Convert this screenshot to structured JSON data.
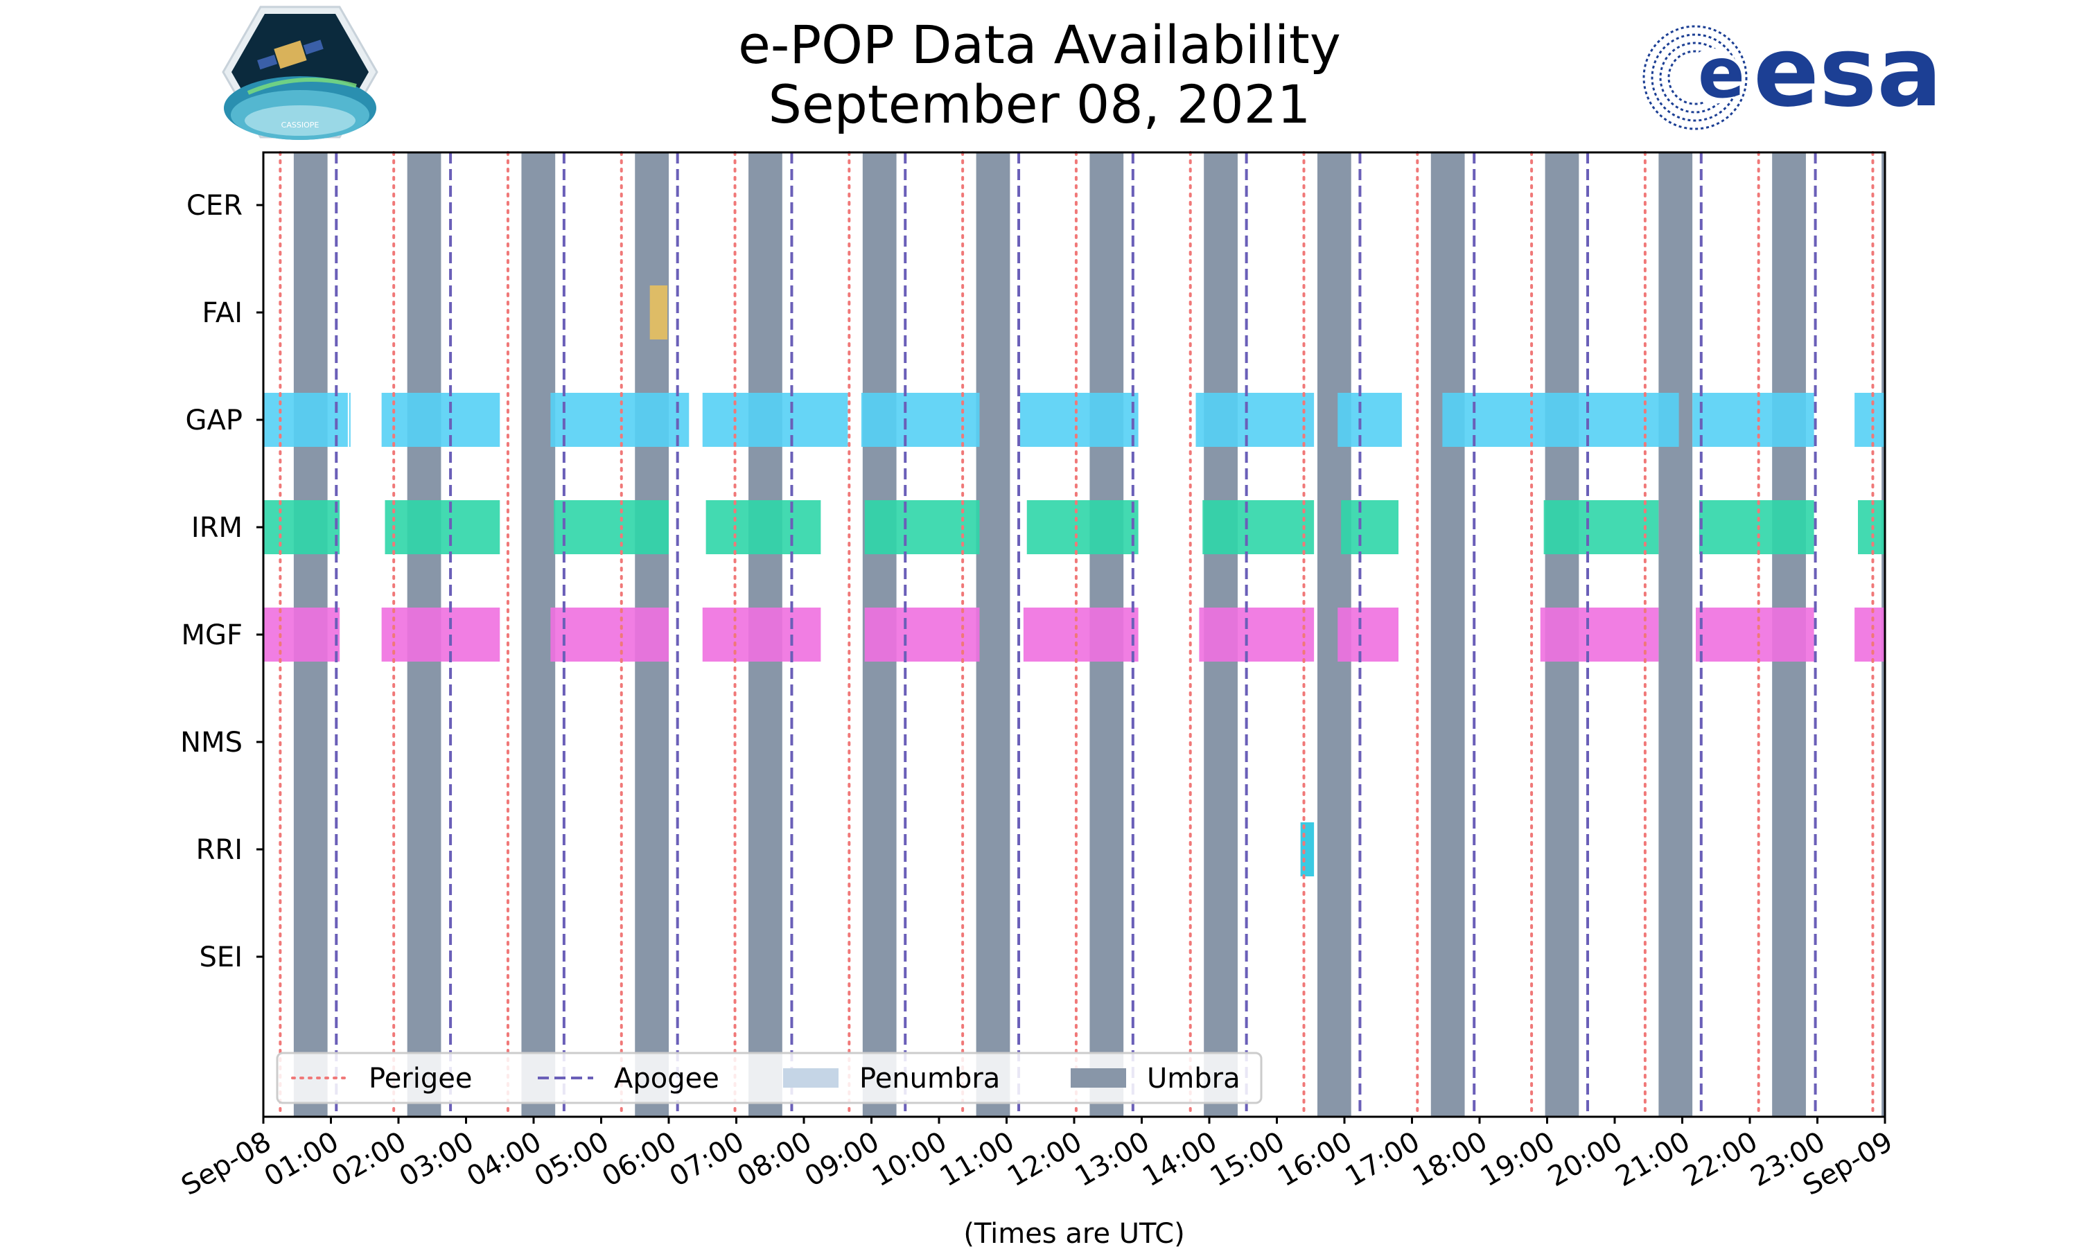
{
  "header": {
    "title_line1": "e-POP Data Availability",
    "title_line2": "September 08, 2021",
    "mission_logo_text": "CASSIOPE",
    "agency_logo_text": "esa"
  },
  "chart_data": {
    "type": "timeline",
    "title": "e-POP Data Availability\nSeptember 08, 2021",
    "xlabel": "(Times are UTC)",
    "x_range_hours": [
      0,
      24
    ],
    "x_tick_hours": [
      0,
      1,
      2,
      3,
      4,
      5,
      6,
      7,
      8,
      9,
      10,
      11,
      12,
      13,
      14,
      15,
      16,
      17,
      18,
      19,
      20,
      21,
      22,
      23,
      24
    ],
    "x_tick_labels": [
      "Sep-08",
      "01:00",
      "02:00",
      "03:00",
      "04:00",
      "05:00",
      "06:00",
      "07:00",
      "08:00",
      "09:00",
      "10:00",
      "11:00",
      "12:00",
      "13:00",
      "14:00",
      "15:00",
      "16:00",
      "17:00",
      "18:00",
      "19:00",
      "20:00",
      "21:00",
      "22:00",
      "23:00",
      "Sep-09"
    ],
    "instruments": [
      "CER",
      "FAI",
      "GAP",
      "IRM",
      "MGF",
      "NMS",
      "RRI",
      "SEI"
    ],
    "colors": {
      "FAI": "#e8c05e",
      "GAP": "#55d0f5",
      "IRM": "#2fd6a8",
      "MGF": "#f070e0",
      "RRI": "#25c4e0",
      "perigee": "#f07878",
      "apogee": "#6a5fb8",
      "penumbra": "#c5d5e6",
      "umbra": "#8896a8"
    },
    "availability": {
      "CER": [],
      "FAI": [
        [
          5.72,
          5.98
        ]
      ],
      "GAP": [
        [
          0.0,
          1.25
        ],
        [
          1.27,
          1.28
        ],
        [
          1.75,
          3.5
        ],
        [
          4.25,
          6.3
        ],
        [
          6.5,
          8.65
        ],
        [
          8.85,
          10.6
        ],
        [
          11.2,
          12.95
        ],
        [
          13.8,
          15.55
        ],
        [
          15.9,
          16.85
        ],
        [
          17.45,
          20.95
        ],
        [
          21.15,
          22.95
        ],
        [
          23.55,
          24.0
        ]
      ],
      "IRM": [
        [
          0.0,
          1.13
        ],
        [
          1.8,
          3.5
        ],
        [
          4.3,
          6.0
        ],
        [
          6.55,
          8.25
        ],
        [
          8.9,
          10.6
        ],
        [
          11.3,
          12.95
        ],
        [
          13.9,
          15.55
        ],
        [
          15.95,
          16.8
        ],
        [
          18.95,
          20.65
        ],
        [
          21.25,
          22.95
        ],
        [
          23.6,
          24.0
        ]
      ],
      "MGF": [
        [
          0.0,
          1.13
        ],
        [
          1.75,
          3.5
        ],
        [
          4.25,
          6.0
        ],
        [
          6.5,
          8.25
        ],
        [
          8.9,
          10.6
        ],
        [
          11.25,
          12.95
        ],
        [
          13.85,
          15.55
        ],
        [
          15.9,
          16.8
        ],
        [
          18.9,
          20.65
        ],
        [
          21.2,
          22.95
        ],
        [
          23.55,
          24.0
        ]
      ],
      "NMS": [],
      "RRI": [
        [
          15.35,
          15.55
        ]
      ],
      "SEI": []
    },
    "umbra_intervals": [
      [
        0.45,
        0.95
      ],
      [
        2.13,
        2.63
      ],
      [
        3.82,
        4.32
      ],
      [
        5.5,
        6.0
      ],
      [
        7.18,
        7.68
      ],
      [
        8.87,
        9.37
      ],
      [
        10.55,
        11.05
      ],
      [
        12.23,
        12.73
      ],
      [
        13.92,
        14.42
      ],
      [
        15.6,
        16.1
      ],
      [
        17.28,
        17.78
      ],
      [
        18.97,
        19.47
      ],
      [
        20.65,
        21.15
      ],
      [
        22.33,
        22.83
      ],
      [
        23.95,
        24.0
      ]
    ],
    "perigee_hours": [
      0.25,
      1.93,
      3.62,
      5.3,
      6.98,
      8.67,
      10.35,
      12.03,
      13.72,
      15.4,
      17.08,
      18.77,
      20.45,
      22.13,
      23.82
    ],
    "apogee_hours": [
      1.08,
      2.77,
      4.45,
      6.13,
      7.82,
      9.5,
      11.18,
      12.87,
      14.55,
      16.23,
      17.92,
      19.6,
      21.28,
      22.97
    ],
    "legend": {
      "placement": "bottom-left",
      "entries": [
        "Perigee",
        "Apogee",
        "Penumbra",
        "Umbra"
      ]
    }
  }
}
